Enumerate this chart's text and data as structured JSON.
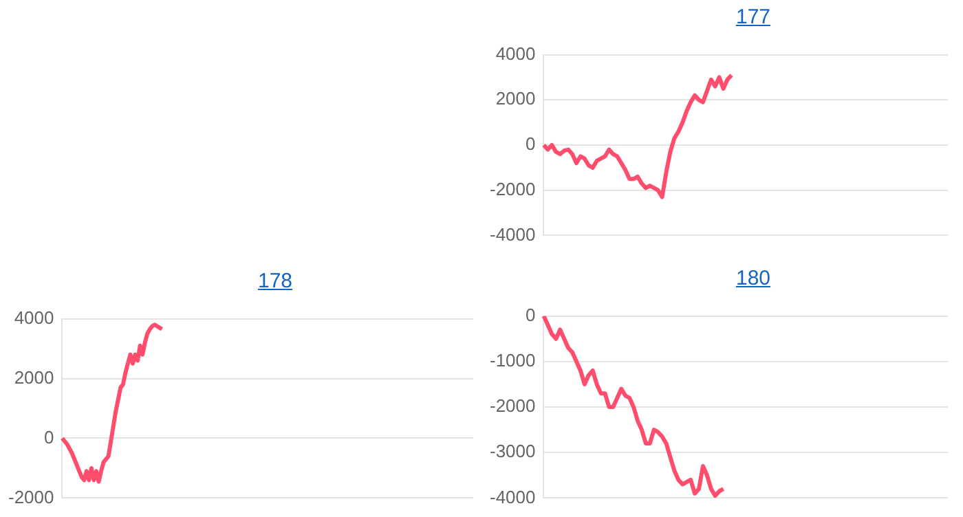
{
  "chart_data": [
    {
      "type": "line",
      "title": "177",
      "categories": [
        null,
        null,
        null,
        null,
        null,
        null,
        null,
        null,
        null,
        null,
        null,
        null,
        null,
        null,
        null,
        null,
        null,
        null,
        null,
        null,
        null,
        null,
        null,
        null,
        null,
        null,
        null,
        null,
        null,
        null,
        null,
        null,
        null,
        null,
        null,
        null,
        null,
        null,
        null,
        null,
        null,
        null,
        null,
        null,
        null,
        null,
        null,
        null,
        null,
        null,
        null,
        null,
        null,
        null,
        null,
        null,
        null,
        null,
        null,
        null,
        null,
        null,
        null,
        null,
        null,
        null,
        null,
        null,
        null,
        null,
        null,
        null,
        null,
        null,
        null,
        null,
        null,
        null,
        null,
        null,
        null,
        null,
        null,
        null,
        null,
        null,
        null,
        null,
        null,
        null,
        null,
        null,
        null,
        null,
        null,
        null,
        null,
        null,
        null,
        null
      ],
      "series": [
        {
          "color": "#ff4d6d",
          "values": [
            0,
            -200,
            0,
            -300,
            -400,
            -250,
            -200,
            -400,
            -800,
            -500,
            -600,
            -900,
            -1000,
            -700,
            -600,
            -500,
            -200,
            -400,
            -500,
            -800,
            -1100,
            -1500,
            -1500,
            -1400,
            -1700,
            -1900,
            -1800,
            -1900,
            -2000,
            -2300,
            -1200,
            -300,
            300,
            600,
            1000,
            1500,
            1900,
            2200,
            2000,
            1900,
            2400,
            2900,
            2600,
            3000,
            2500,
            2900,
            3100,
            null,
            null,
            null,
            null,
            null,
            null,
            null,
            null,
            null,
            null,
            null,
            null,
            null,
            null,
            null,
            null,
            null,
            null,
            null,
            null,
            null,
            null,
            null,
            null,
            null,
            null,
            null,
            null,
            null,
            null,
            null,
            null,
            null,
            null,
            null,
            null,
            null,
            null,
            null,
            null,
            null,
            null,
            null,
            null,
            null,
            null,
            null,
            null,
            null,
            null,
            null,
            null,
            null
          ]
        }
      ],
      "ylim": [
        -4000,
        4000
      ],
      "yticks": [
        -4000,
        -2000,
        0,
        2000,
        4000
      ],
      "grid": "y",
      "tick_labels": "y",
      "legend": false,
      "marker": "none"
    },
    {
      "type": "line",
      "title": "178",
      "categories": [
        null,
        null,
        null,
        null,
        null,
        null,
        null,
        null,
        null,
        null,
        null,
        null,
        null,
        null,
        null,
        null,
        null,
        null,
        null,
        null,
        null,
        null,
        null,
        null,
        null,
        null,
        null,
        null,
        null,
        null,
        null,
        null,
        null,
        null,
        null,
        null,
        null,
        null,
        null,
        null,
        null,
        null,
        null,
        null,
        null,
        null,
        null,
        null,
        null,
        null,
        null,
        null,
        null,
        null,
        null,
        null,
        null,
        null,
        null,
        null,
        null,
        null,
        null,
        null,
        null,
        null,
        null,
        null,
        null,
        null,
        null,
        null,
        null,
        null,
        null,
        null,
        null,
        null,
        null,
        null,
        null,
        null,
        null,
        null,
        null,
        null,
        null,
        null,
        null,
        null,
        null,
        null,
        null,
        null,
        null,
        null,
        null,
        null,
        null,
        null,
        null,
        null,
        null,
        null,
        null,
        null,
        null,
        null,
        null,
        null,
        null,
        null,
        null,
        null,
        null,
        null,
        null,
        null,
        null,
        null,
        null,
        null,
        null,
        null,
        null,
        null,
        null,
        null,
        null,
        null,
        null,
        null,
        null,
        null,
        null,
        null,
        null,
        null,
        null,
        null,
        null,
        null,
        null,
        null,
        null,
        null,
        null,
        null,
        null,
        null,
        null,
        null,
        null,
        null,
        null,
        null,
        null,
        null,
        null,
        null,
        null,
        null,
        null,
        null,
        null,
        null,
        null,
        null,
        null,
        null
      ],
      "series": [
        {
          "color": "#ff4d6d",
          "values": [
            0,
            -100,
            -200,
            -350,
            -500,
            -700,
            -900,
            -1100,
            -1300,
            -1400,
            -1100,
            -1400,
            -1000,
            -1400,
            -1100,
            -1450,
            -1100,
            -800,
            -700,
            -600,
            -100,
            400,
            900,
            1300,
            1700,
            1800,
            2200,
            2500,
            2800,
            2500,
            2800,
            2600,
            3100,
            2800,
            3200,
            3500,
            3650,
            3750,
            3800,
            3750,
            3700,
            3650,
            null,
            null,
            null,
            null,
            null,
            null,
            null,
            null,
            null,
            null,
            null,
            null,
            null,
            null,
            null,
            null,
            null,
            null,
            null,
            null,
            null,
            null,
            null,
            null,
            null,
            null,
            null,
            null,
            null,
            null,
            null,
            null,
            null,
            null,
            null,
            null,
            null,
            null,
            null,
            null,
            null,
            null,
            null,
            null,
            null,
            null,
            null,
            null,
            null,
            null,
            null,
            null,
            null,
            null,
            null,
            null,
            null,
            null,
            null,
            null,
            null,
            null,
            null,
            null,
            null,
            null,
            null,
            null,
            null,
            null,
            null,
            null,
            null,
            null,
            null,
            null,
            null,
            null,
            null,
            null,
            null,
            null,
            null,
            null,
            null,
            null,
            null,
            null,
            null,
            null,
            null,
            null,
            null,
            null,
            null,
            null,
            null,
            null,
            null,
            null,
            null,
            null,
            null,
            null,
            null,
            null,
            null,
            null,
            null,
            null,
            null,
            null,
            null,
            null,
            null,
            null,
            null,
            null,
            null,
            null,
            null,
            null,
            null,
            null,
            null,
            null,
            null,
            null
          ]
        }
      ],
      "ylim": [
        -2000,
        4000
      ],
      "yticks": [
        -2000,
        0,
        2000,
        4000
      ],
      "grid": "y",
      "tick_labels": "y",
      "legend": false,
      "marker": "none"
    },
    {
      "type": "line",
      "title": "180",
      "categories": [
        null,
        null,
        null,
        null,
        null,
        null,
        null,
        null,
        null,
        null,
        null,
        null,
        null,
        null,
        null,
        null,
        null,
        null,
        null,
        null,
        null,
        null,
        null,
        null,
        null,
        null,
        null,
        null,
        null,
        null,
        null,
        null,
        null,
        null,
        null,
        null,
        null,
        null,
        null,
        null,
        null,
        null,
        null,
        null,
        null,
        null,
        null,
        null,
        null,
        null,
        null,
        null,
        null,
        null,
        null,
        null,
        null,
        null,
        null,
        null,
        null,
        null,
        null,
        null,
        null,
        null,
        null,
        null,
        null,
        null,
        null,
        null,
        null,
        null,
        null,
        null,
        null,
        null,
        null,
        null,
        null,
        null,
        null,
        null,
        null,
        null,
        null,
        null,
        null,
        null,
        null,
        null,
        null,
        null,
        null,
        null,
        null,
        null,
        null,
        null
      ],
      "series": [
        {
          "color": "#ff4d6d",
          "values": [
            0,
            -200,
            -400,
            -500,
            -300,
            -500,
            -700,
            -800,
            -1000,
            -1200,
            -1500,
            -1300,
            -1200,
            -1500,
            -1700,
            -1700,
            -2000,
            -2000,
            -1800,
            -1600,
            -1750,
            -1800,
            -2000,
            -2300,
            -2500,
            -2800,
            -2800,
            -2500,
            -2550,
            -2650,
            -2800,
            -3100,
            -3400,
            -3600,
            -3700,
            -3650,
            -3600,
            -3900,
            -3800,
            -3300,
            -3500,
            -3800,
            -3950,
            -3850,
            -3800,
            null,
            null,
            null,
            null,
            null,
            null,
            null,
            null,
            null,
            null,
            null,
            null,
            null,
            null,
            null,
            null,
            null,
            null,
            null,
            null,
            null,
            null,
            null,
            null,
            null,
            null,
            null,
            null,
            null,
            null,
            null,
            null,
            null,
            null,
            null,
            null,
            null,
            null,
            null,
            null,
            null,
            null,
            null,
            null,
            null,
            null,
            null,
            null,
            null,
            null,
            null,
            null,
            null,
            null,
            null
          ]
        }
      ],
      "ylim": [
        -4000,
        0
      ],
      "yticks": [
        -4000,
        -3000,
        -2000,
        -1000,
        0
      ],
      "grid": "y",
      "tick_labels": "y",
      "legend": false,
      "marker": "none"
    }
  ]
}
